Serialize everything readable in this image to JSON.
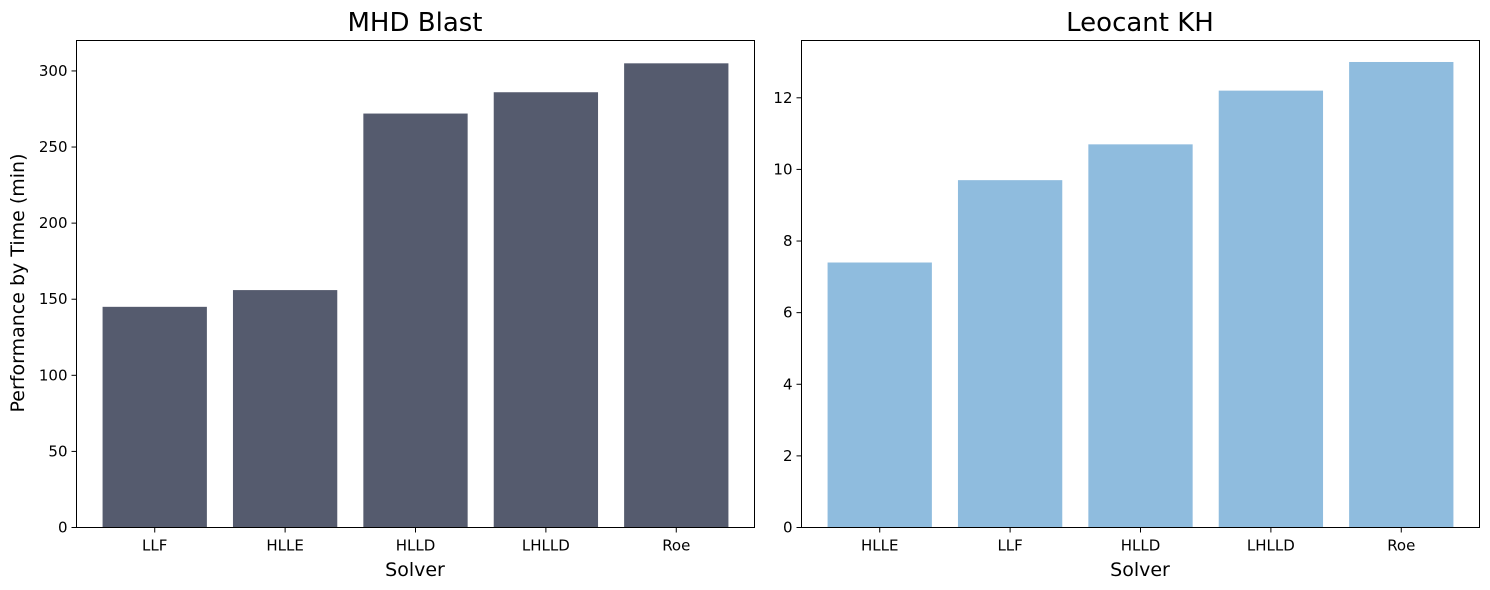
{
  "chart_data": [
    {
      "type": "bar",
      "title": "MHD Blast",
      "xlabel": "Solver",
      "ylabel": "Performance by Time (min)",
      "categories": [
        "LLF",
        "HLLE",
        "HLLD",
        "LHLLD",
        "Roe"
      ],
      "values": [
        145,
        156,
        272,
        286,
        305
      ],
      "ylim": [
        0,
        320
      ],
      "yticks": [
        0,
        50,
        100,
        150,
        200,
        250,
        300
      ],
      "color": "#555b6e",
      "grid": false
    },
    {
      "type": "bar",
      "title": "Leocant KH",
      "xlabel": "Solver",
      "ylabel": "",
      "categories": [
        "HLLE",
        "LLF",
        "HLLD",
        "LHLLD",
        "Roe"
      ],
      "values": [
        7.4,
        9.7,
        10.7,
        12.2,
        13.0
      ],
      "ylim": [
        0,
        13.6
      ],
      "yticks": [
        0,
        2,
        4,
        6,
        8,
        10,
        12
      ],
      "color": "#8fbcde",
      "grid": false
    }
  ]
}
